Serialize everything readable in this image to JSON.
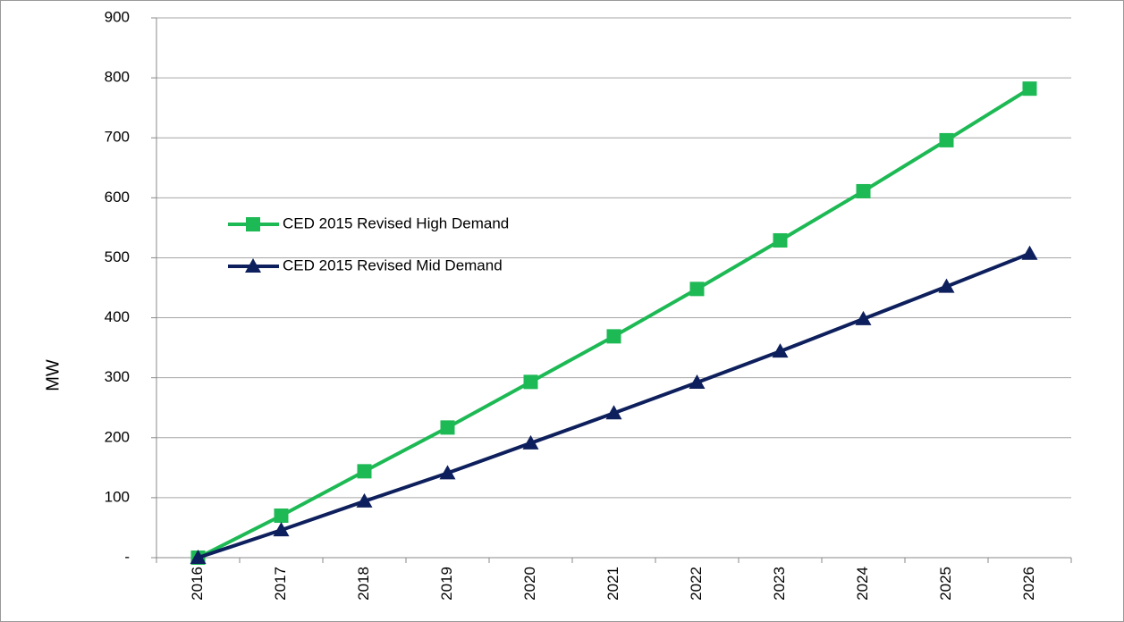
{
  "chart_data": {
    "type": "line",
    "categories": [
      "2016",
      "2017",
      "2018",
      "2019",
      "2020",
      "2021",
      "2022",
      "2023",
      "2024",
      "2025",
      "2026"
    ],
    "y_label": "MW",
    "series": [
      {
        "name": "CED 2015 Revised  High Demand",
        "color": "#1db954",
        "marker": "square",
        "values": [
          0,
          70,
          144,
          217,
          293,
          369,
          448,
          529,
          611,
          696,
          782
        ]
      },
      {
        "name": "CED 2015 Revised  Mid Demand",
        "color": "#0d1f5c",
        "marker": "triangle",
        "values": [
          0,
          46,
          94,
          141,
          191,
          241,
          292,
          344,
          398,
          452,
          507
        ]
      }
    ],
    "ylim": [
      0,
      900
    ],
    "yticks": [
      {
        "value": 0,
        "label": "-"
      },
      100,
      200,
      300,
      400,
      500,
      600,
      700,
      800,
      900
    ],
    "grid": true,
    "legend": "upper left"
  }
}
